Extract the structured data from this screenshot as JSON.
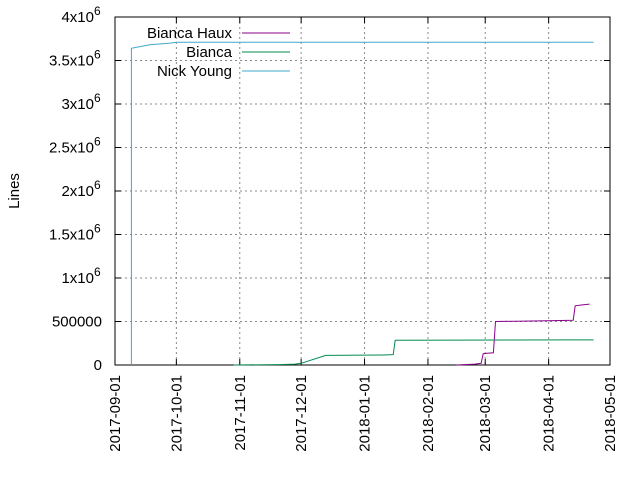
{
  "chart_data": {
    "type": "line",
    "ylabel": "Lines",
    "ylim": [
      0,
      4000000
    ],
    "xlim": [
      "2017-09-01",
      "2018-05-01"
    ],
    "y_ticks": [
      {
        "value": 0,
        "label": "0",
        "exp": ""
      },
      {
        "value": 500000,
        "label": "500000",
        "exp": ""
      },
      {
        "value": 1000000,
        "label": "1x10",
        "exp": "6"
      },
      {
        "value": 1500000,
        "label": "1.5x10",
        "exp": "6"
      },
      {
        "value": 2000000,
        "label": "2x10",
        "exp": "6"
      },
      {
        "value": 2500000,
        "label": "2.5x10",
        "exp": "6"
      },
      {
        "value": 3000000,
        "label": "3x10",
        "exp": "6"
      },
      {
        "value": 3500000,
        "label": "3.5x10",
        "exp": "6"
      },
      {
        "value": 4000000,
        "label": "4x10",
        "exp": "6"
      }
    ],
    "x_ticks": [
      "2017-09-01",
      "2017-10-01",
      "2017-11-01",
      "2017-12-01",
      "2018-01-01",
      "2018-02-01",
      "2018-03-01",
      "2018-04-01",
      "2018-05-01"
    ],
    "grid": true,
    "legend_position": "top-left",
    "series": [
      {
        "name": "Bianca Haux",
        "color": "#8b008b",
        "points": [
          [
            "2018-02-15",
            0
          ],
          [
            "2018-02-24",
            10000
          ],
          [
            "2018-02-27",
            20000
          ],
          [
            "2018-02-28",
            130000
          ],
          [
            "2018-03-02",
            135000
          ],
          [
            "2018-03-05",
            140000
          ],
          [
            "2018-03-06",
            500000
          ],
          [
            "2018-03-20",
            505000
          ],
          [
            "2018-04-04",
            510000
          ],
          [
            "2018-04-13",
            515000
          ],
          [
            "2018-04-14",
            680000
          ],
          [
            "2018-04-17",
            690000
          ],
          [
            "2018-04-21",
            700000
          ]
        ]
      },
      {
        "name": "Bianca",
        "color": "#008b50",
        "points": [
          [
            "2017-10-29",
            0
          ],
          [
            "2017-11-20",
            5000
          ],
          [
            "2017-11-28",
            10000
          ],
          [
            "2017-12-01",
            20000
          ],
          [
            "2017-12-13",
            110000
          ],
          [
            "2018-01-10",
            115000
          ],
          [
            "2018-01-15",
            120000
          ],
          [
            "2018-01-16",
            285000
          ],
          [
            "2018-04-10",
            288000
          ],
          [
            "2018-04-23",
            288000
          ]
        ]
      },
      {
        "name": "Nick Young",
        "color": "#40a8c8",
        "points": [
          [
            "2017-09-09",
            0
          ],
          [
            "2017-09-09",
            3640000
          ],
          [
            "2017-09-18",
            3680000
          ],
          [
            "2017-09-28",
            3700000
          ],
          [
            "2017-10-01",
            3710000
          ],
          [
            "2018-04-23",
            3710000
          ]
        ]
      }
    ]
  }
}
